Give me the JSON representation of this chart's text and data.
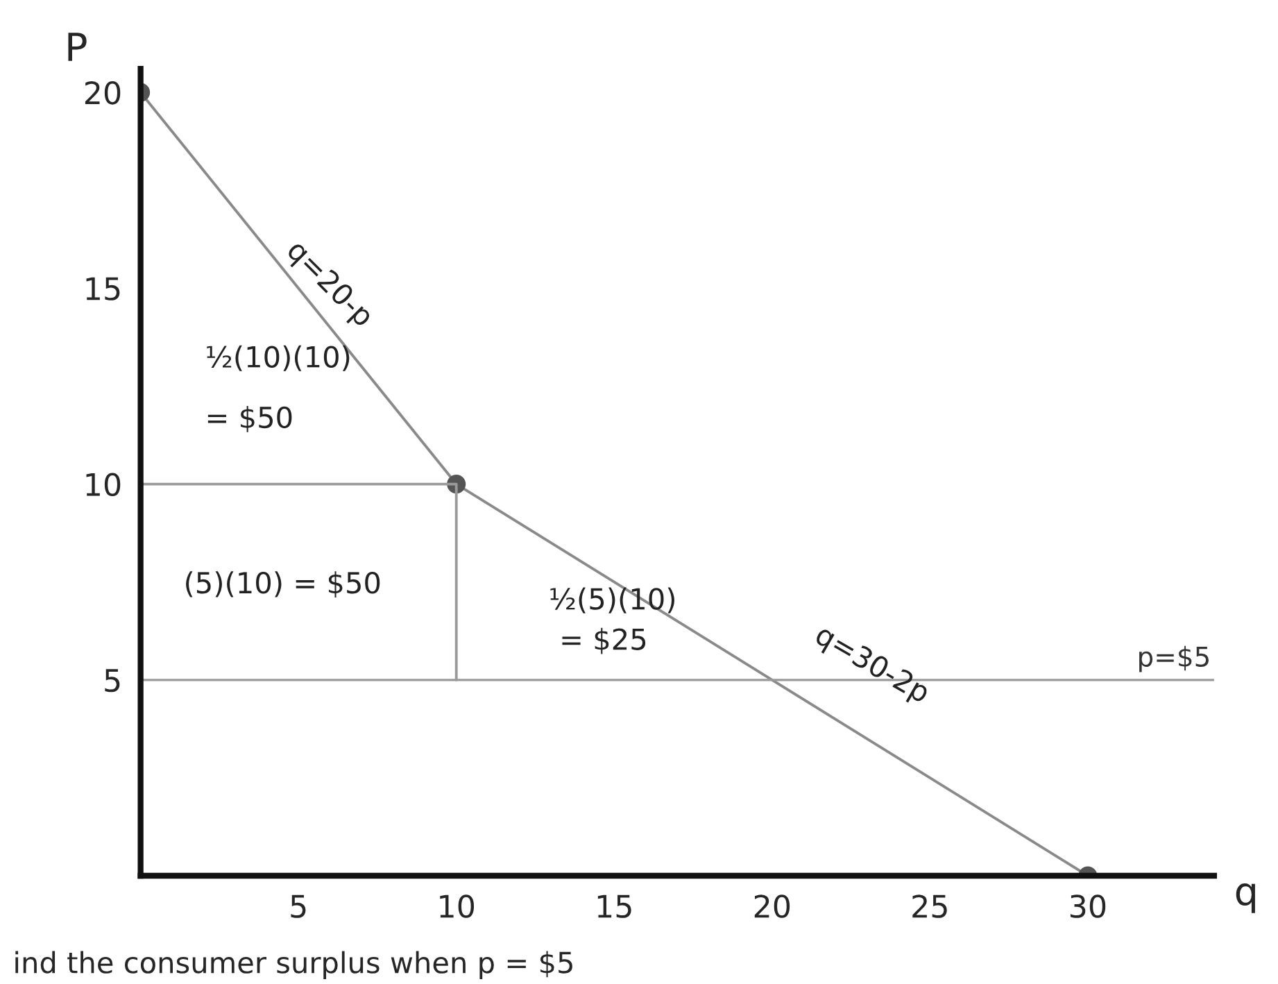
{
  "chart_data": {
    "type": "line",
    "xlabel": "q",
    "ylabel": "P",
    "series": [
      {
        "type": "line",
        "color": "#8a8a8a",
        "x": [
          0,
          10,
          30
        ],
        "values": [
          20,
          10,
          0
        ],
        "marker": "circle"
      },
      {
        "type": "line",
        "color": "#9a9a9a",
        "x": [
          0,
          10,
          10
        ],
        "values": [
          10,
          10,
          5
        ],
        "marker": "none"
      }
    ],
    "xlim": [
      0,
      34
    ],
    "ylim": [
      0,
      20.6
    ],
    "xticks": [
      5,
      10,
      15,
      20,
      25,
      30
    ],
    "yticks": [
      5,
      10,
      15,
      20
    ],
    "ref_lines": [
      {
        "axis": "y",
        "value": 5,
        "label": "p=$5",
        "color": "#9a9a9a"
      }
    ],
    "annotations": [
      "q=20-p",
      "½(10)(10)",
      "= $50",
      "(5)(10) = $50",
      "½(5)(10)",
      "= $25",
      "q=30-2p",
      "ind the consumer surplus when p = $5"
    ],
    "grid": false,
    "legend": false
  }
}
